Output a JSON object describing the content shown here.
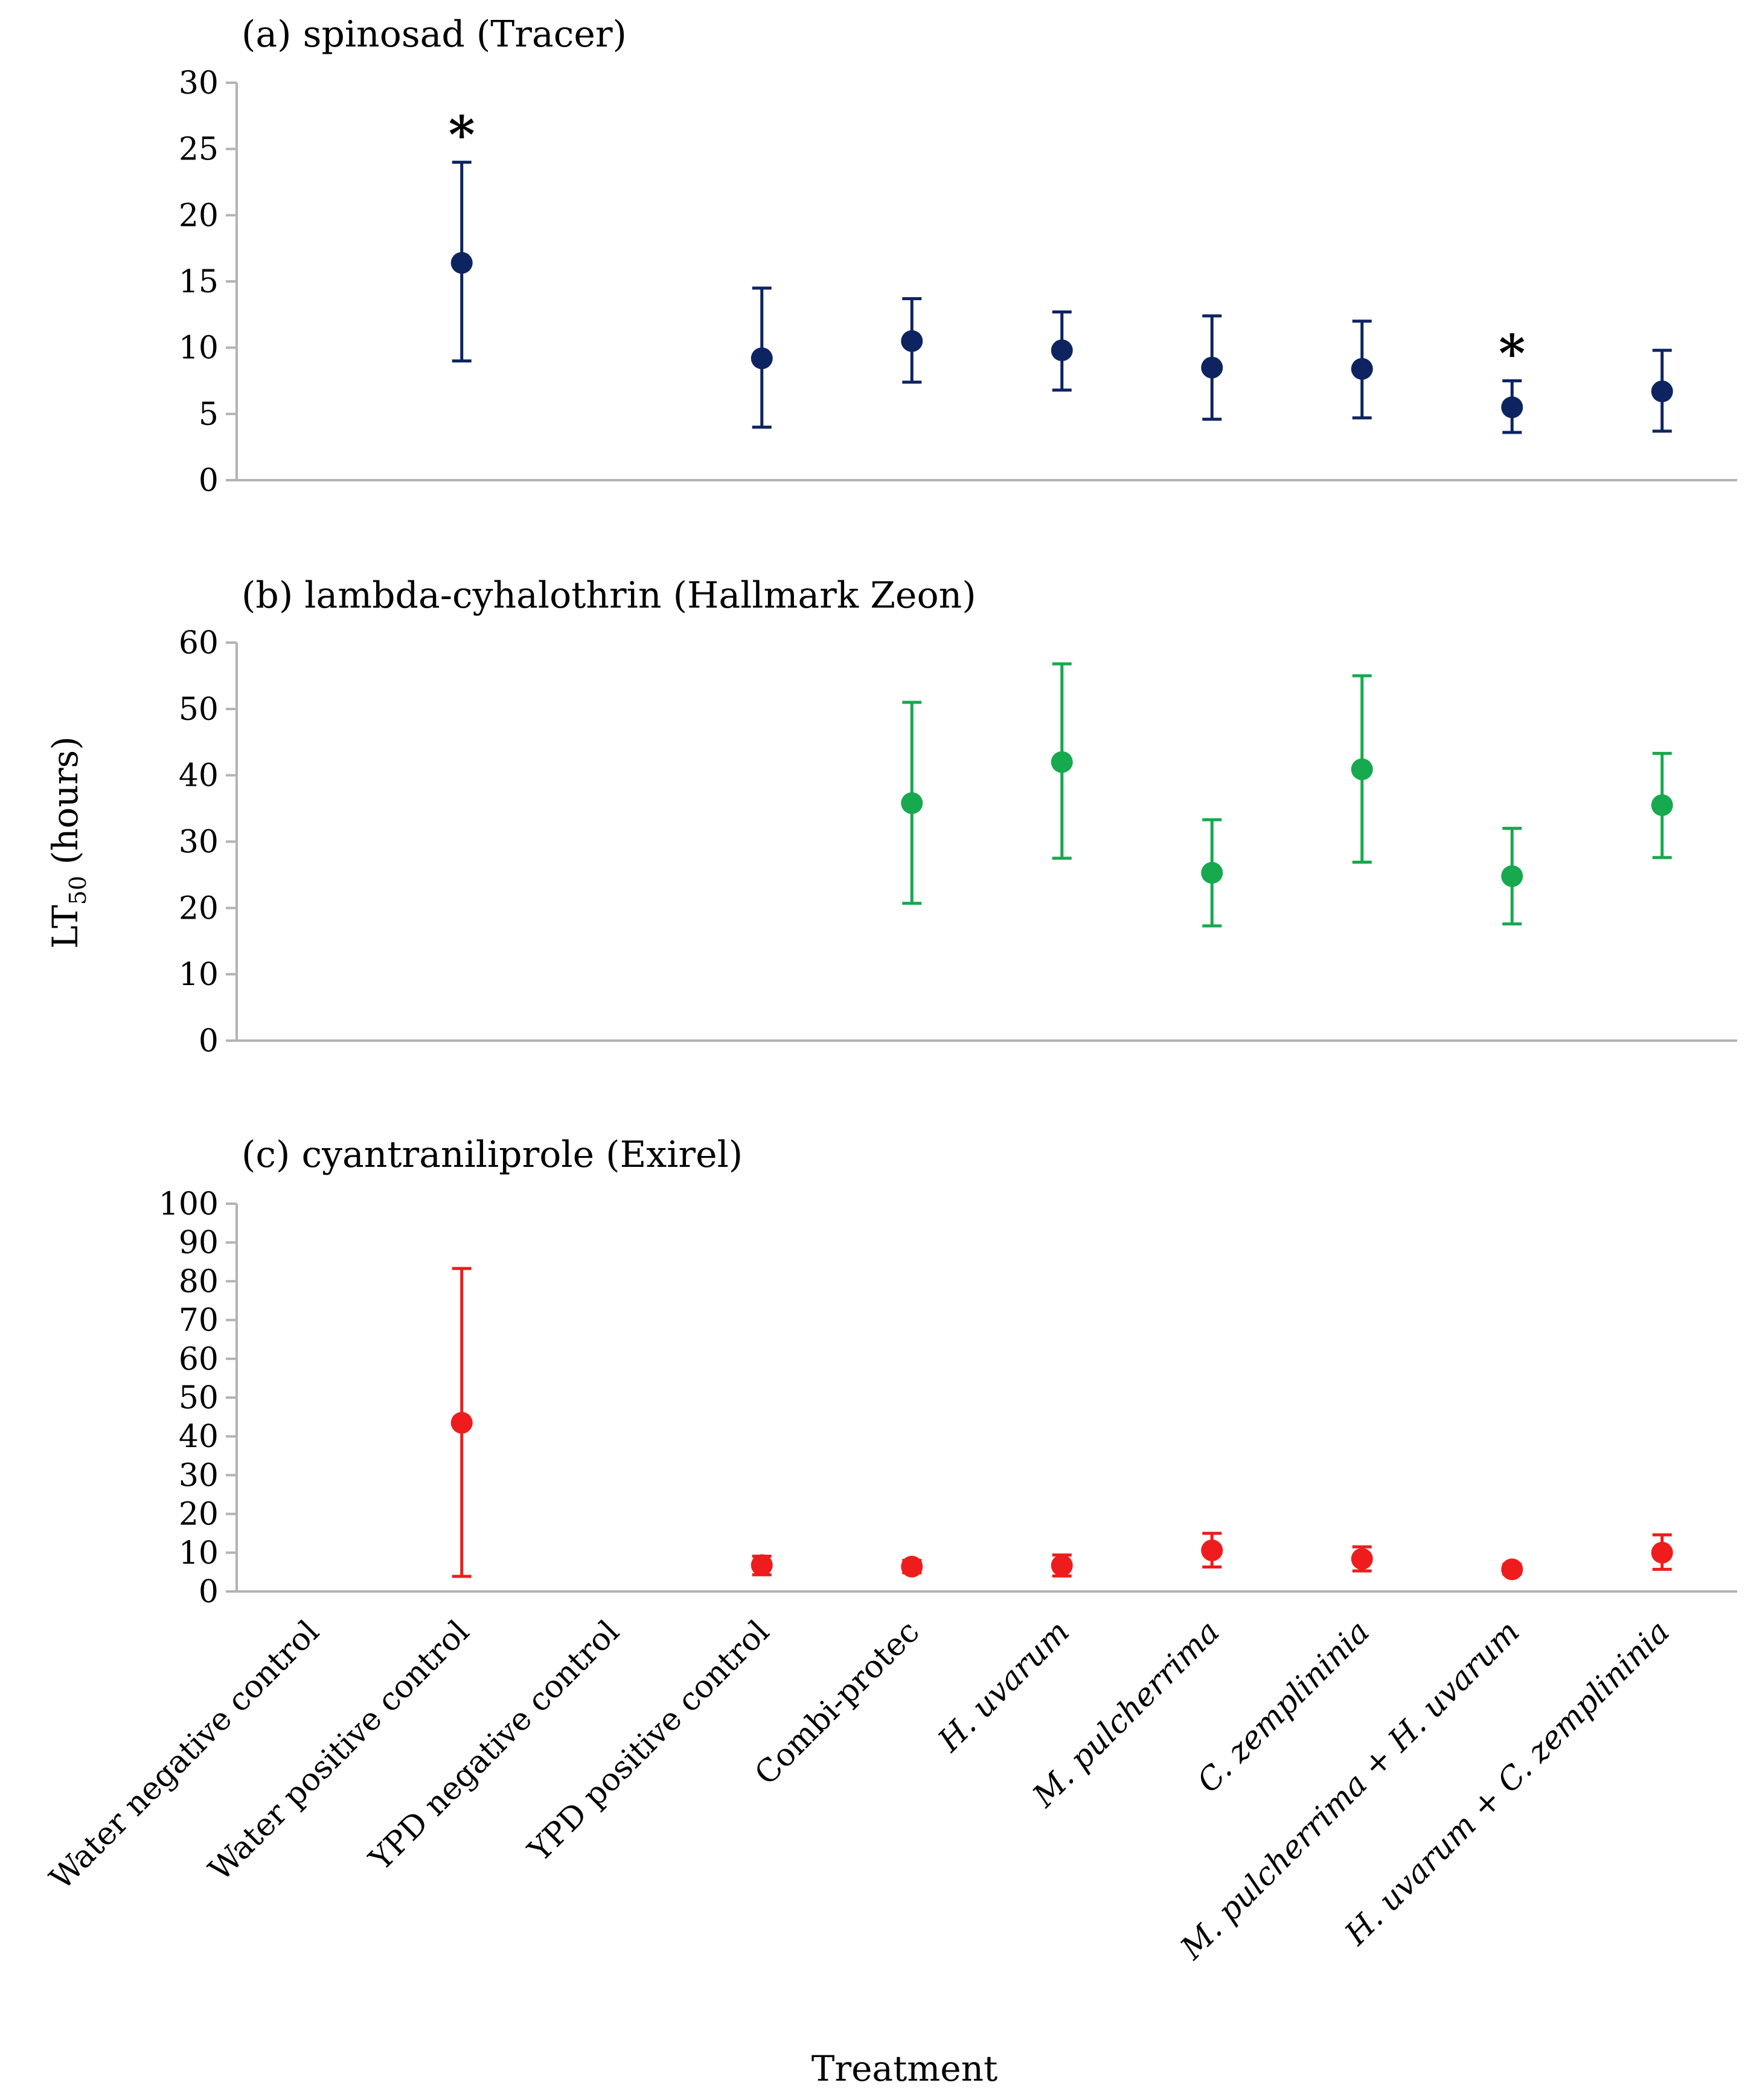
{
  "chart_data": [
    {
      "type": "scatter",
      "title": "(a) spinosad (Tracer)",
      "color": "#0d2461",
      "ylim": [
        0,
        30
      ],
      "yticks": [
        0,
        5,
        10,
        15,
        20,
        25,
        30
      ],
      "points": [
        {
          "category_index": 1,
          "y": 16.4,
          "lower": 9.0,
          "upper": 24.0,
          "annotation": "*"
        },
        {
          "category_index": 3,
          "y": 9.2,
          "lower": 4.0,
          "upper": 14.5,
          "annotation": ""
        },
        {
          "category_index": 4,
          "y": 10.5,
          "lower": 7.4,
          "upper": 13.7,
          "annotation": ""
        },
        {
          "category_index": 5,
          "y": 9.8,
          "lower": 6.8,
          "upper": 12.7,
          "annotation": ""
        },
        {
          "category_index": 6,
          "y": 8.5,
          "lower": 4.6,
          "upper": 12.4,
          "annotation": ""
        },
        {
          "category_index": 7,
          "y": 8.4,
          "lower": 4.7,
          "upper": 12.0,
          "annotation": ""
        },
        {
          "category_index": 8,
          "y": 5.5,
          "lower": 3.6,
          "upper": 7.5,
          "annotation": "*"
        },
        {
          "category_index": 9,
          "y": 6.7,
          "lower": 3.7,
          "upper": 9.8,
          "annotation": ""
        }
      ]
    },
    {
      "type": "scatter",
      "title": "(b) lambda-cyhalothrin (Hallmark Zeon)",
      "color": "#16a94e",
      "ylim": [
        0,
        60
      ],
      "yticks": [
        0,
        10,
        20,
        30,
        40,
        50,
        60
      ],
      "points": [
        {
          "category_index": 4,
          "y": 35.8,
          "lower": 20.7,
          "upper": 51.0,
          "annotation": ""
        },
        {
          "category_index": 5,
          "y": 42.0,
          "lower": 27.5,
          "upper": 56.8,
          "annotation": ""
        },
        {
          "category_index": 6,
          "y": 25.3,
          "lower": 17.3,
          "upper": 33.3,
          "annotation": ""
        },
        {
          "category_index": 7,
          "y": 40.9,
          "lower": 26.9,
          "upper": 55.0,
          "annotation": ""
        },
        {
          "category_index": 8,
          "y": 24.8,
          "lower": 17.6,
          "upper": 32.0,
          "annotation": ""
        },
        {
          "category_index": 9,
          "y": 35.5,
          "lower": 27.6,
          "upper": 43.3,
          "annotation": ""
        }
      ]
    },
    {
      "type": "scatter",
      "title": "(c) cyantraniliprole (Exirel)",
      "color": "#ee1c1c",
      "ylim": [
        0,
        100
      ],
      "yticks": [
        0,
        10,
        20,
        30,
        40,
        50,
        60,
        70,
        80,
        90,
        100
      ],
      "points": [
        {
          "category_index": 1,
          "y": 43.5,
          "lower": 3.9,
          "upper": 83.3,
          "annotation": ""
        },
        {
          "category_index": 3,
          "y": 6.8,
          "lower": 4.3,
          "upper": 9.1,
          "annotation": ""
        },
        {
          "category_index": 4,
          "y": 6.4,
          "lower": 4.8,
          "upper": 8.0,
          "annotation": ""
        },
        {
          "category_index": 5,
          "y": 6.7,
          "lower": 4.0,
          "upper": 9.4,
          "annotation": ""
        },
        {
          "category_index": 6,
          "y": 10.6,
          "lower": 6.3,
          "upper": 15.0,
          "annotation": ""
        },
        {
          "category_index": 7,
          "y": 8.4,
          "lower": 5.3,
          "upper": 11.5,
          "annotation": ""
        },
        {
          "category_index": 8,
          "y": 5.7,
          "lower": 4.5,
          "upper": 7.0,
          "annotation": ""
        },
        {
          "category_index": 9,
          "y": 10.0,
          "lower": 5.7,
          "upper": 14.6,
          "annotation": ""
        }
      ]
    }
  ],
  "categories": [
    {
      "text": "Water negative control",
      "italic_parts": []
    },
    {
      "text": "Water positive control",
      "italic_parts": []
    },
    {
      "text": "YPD negative control",
      "italic_parts": []
    },
    {
      "text": "YPD positive control",
      "italic_parts": []
    },
    {
      "text": "Combi-protec",
      "italic_parts": []
    },
    {
      "text": "H. uvarum",
      "italic_parts": [
        "H. uvarum"
      ]
    },
    {
      "text": "M. pulcherrima",
      "italic_parts": [
        "M. pulcherrima"
      ]
    },
    {
      "text": "C. zemplininia",
      "italic_parts": [
        "C. zemplininia"
      ]
    },
    {
      "text": "M. pulcherrima + H. uvarum",
      "italic_parts": [
        "M. pulcherrima",
        " + ",
        "H. uvarum"
      ]
    },
    {
      "text": "H. uvarum + C. zemplininia",
      "italic_parts": [
        "H. uvarum",
        " + ",
        "C. zemplininia"
      ]
    }
  ],
  "y_axis_title": {
    "main": "LT",
    "subscript": "50",
    "suffix": " (hours)"
  },
  "x_axis_title": "Treatment"
}
